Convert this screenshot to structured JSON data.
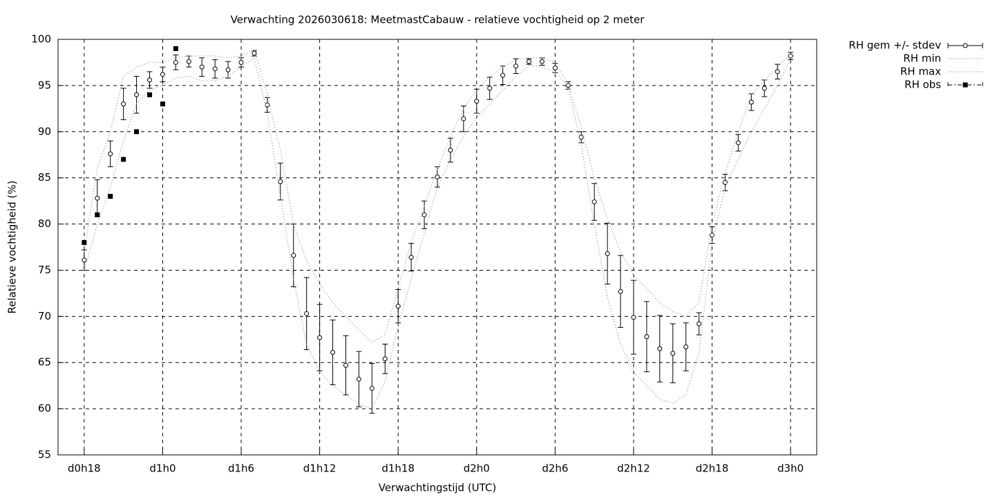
{
  "chart_data": {
    "type": "errorbar",
    "title": "Verwachting 2026030618: MeetmastCabauw - relatieve vochtigheid op 2 meter",
    "x_label": "Verwachtingstijd (UTC)",
    "y_label": "Relatieve vochtigheid (%)",
    "xlim": [
      16,
      74
    ],
    "xticks": [
      {
        "value": 18,
        "label": "d0h18"
      },
      {
        "value": 24,
        "label": "d1h0"
      },
      {
        "value": 30,
        "label": "d1h6"
      },
      {
        "value": 36,
        "label": "d1h12"
      },
      {
        "value": 42,
        "label": "d1h18"
      },
      {
        "value": 48,
        "label": "d2h0"
      },
      {
        "value": 54,
        "label": "d2h6"
      },
      {
        "value": 60,
        "label": "d2h12"
      },
      {
        "value": 66,
        "label": "d2h18"
      },
      {
        "value": 72,
        "label": "d3h0"
      }
    ],
    "ylim": [
      55,
      100
    ],
    "yticks": [
      55,
      60,
      65,
      70,
      75,
      80,
      85,
      90,
      95,
      100
    ],
    "grid": true,
    "legend": "outside-top-right",
    "series": [
      {
        "name": "RH gem +/- stdev",
        "kind": "errorbar",
        "color": "#000000",
        "x": [
          18,
          19,
          20,
          21,
          22,
          23,
          24,
          25,
          26,
          27,
          28,
          29,
          30,
          31,
          32,
          33,
          34,
          35,
          36,
          37,
          38,
          39,
          40,
          41,
          42,
          43,
          44,
          45,
          46,
          47,
          48,
          49,
          50,
          51,
          52,
          53,
          54,
          55,
          56,
          57,
          58,
          59,
          60,
          61,
          62,
          63,
          64,
          65,
          66,
          67,
          68,
          69,
          70,
          71,
          72
        ],
        "values": [
          76.1,
          82.8,
          87.6,
          93.0,
          94.0,
          95.6,
          96.2,
          97.5,
          97.6,
          97.0,
          96.8,
          96.7,
          97.5,
          98.5,
          92.9,
          84.6,
          76.6,
          70.3,
          67.7,
          66.1,
          64.7,
          63.2,
          62.2,
          65.4,
          71.1,
          76.4,
          81.0,
          85.1,
          88.0,
          91.4,
          93.3,
          94.7,
          96.1,
          97.1,
          97.6,
          97.6,
          96.9,
          95.0,
          89.4,
          82.4,
          76.8,
          72.7,
          69.9,
          67.8,
          66.5,
          66.0,
          66.7,
          69.2,
          78.8,
          84.5,
          88.8,
          93.2,
          94.7,
          96.5,
          98.2
        ],
        "errors": [
          1.1,
          2.0,
          1.4,
          1.7,
          2.0,
          0.9,
          0.8,
          0.8,
          0.6,
          1.0,
          1.0,
          0.9,
          0.5,
          0.3,
          0.8,
          2.0,
          3.4,
          3.9,
          3.6,
          3.5,
          3.2,
          3.0,
          2.7,
          1.6,
          1.8,
          1.5,
          1.5,
          1.1,
          1.3,
          1.4,
          1.3,
          1.2,
          1.0,
          0.8,
          0.3,
          0.4,
          0.5,
          0.4,
          0.6,
          2.0,
          3.3,
          3.9,
          4.0,
          3.8,
          3.6,
          3.2,
          2.6,
          1.2,
          0.9,
          0.9,
          0.9,
          0.9,
          0.9,
          0.8,
          0.4
        ]
      },
      {
        "name": "RH min",
        "kind": "line",
        "color": "#aaaaaa",
        "x": [
          18,
          19,
          20,
          21,
          22,
          23,
          24,
          25,
          26,
          27,
          28,
          29,
          30,
          31,
          32,
          33,
          34,
          35,
          36,
          37,
          38,
          39,
          40,
          41,
          42,
          43,
          44,
          45,
          46,
          47,
          48,
          49,
          50,
          51,
          52,
          53,
          54,
          55,
          56,
          57,
          58,
          59,
          60,
          61,
          62,
          63,
          64,
          65,
          66,
          67,
          68,
          69,
          70,
          71,
          72
        ],
        "values": [
          75,
          80,
          84,
          89,
          93,
          94.5,
          95,
          95.8,
          96,
          95.5,
          95.5,
          96,
          97,
          98,
          92,
          83,
          74,
          67,
          64,
          62.5,
          61.5,
          60.5,
          60,
          63,
          69,
          74,
          79,
          84,
          87,
          89.5,
          91.5,
          93,
          94.5,
          96,
          97.2,
          97,
          96.5,
          94.8,
          88.5,
          80,
          72,
          67,
          64,
          62.5,
          61,
          60.6,
          61.5,
          66,
          78,
          84,
          87,
          90,
          92.5,
          95,
          97.8
        ]
      },
      {
        "name": "RH max",
        "kind": "line",
        "color": "#aaaaaa",
        "x": [
          18,
          19,
          20,
          21,
          22,
          23,
          24,
          25,
          26,
          27,
          28,
          29,
          30,
          31,
          32,
          33,
          34,
          35,
          36,
          37,
          38,
          39,
          40,
          41,
          42,
          43,
          44,
          45,
          46,
          47,
          48,
          49,
          50,
          51,
          52,
          53,
          54,
          55,
          56,
          57,
          58,
          59,
          60,
          61,
          62,
          63,
          64,
          65,
          66,
          67,
          68,
          69,
          70,
          71,
          72
        ],
        "values": [
          77,
          86,
          90,
          96,
          97,
          97.5,
          97.5,
          98,
          98.2,
          98.2,
          98.2,
          98,
          98.2,
          98.9,
          94,
          88,
          80,
          76,
          73.5,
          71.5,
          70,
          68.5,
          67.2,
          68,
          73,
          78,
          82,
          86,
          89.5,
          92.5,
          94.5,
          96,
          97,
          97.8,
          98,
          98,
          97.5,
          95.2,
          90.5,
          85,
          80.5,
          77,
          74.5,
          73,
          71.5,
          70.5,
          70,
          71.5,
          80,
          85.5,
          90,
          94,
          95.5,
          97,
          98.5
        ]
      },
      {
        "name": "RH obs",
        "kind": "points",
        "color": "#000000",
        "x": [
          18,
          19,
          20,
          21,
          22,
          23,
          24,
          25
        ],
        "values": [
          78,
          81,
          83,
          87,
          90,
          94,
          93,
          99
        ]
      }
    ]
  }
}
